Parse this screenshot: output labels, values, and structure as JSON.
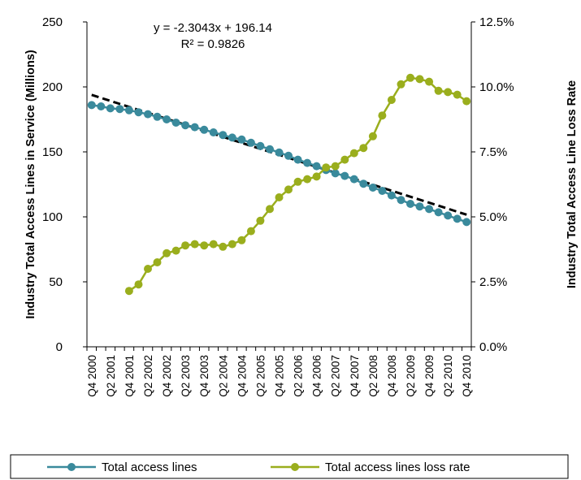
{
  "chart_data": {
    "type": "line",
    "ylabel_left": "Industry Total Access Lines in Service (Millions)",
    "ylabel_right": "Industry Total Access Line Loss Rate",
    "ylim_left": [
      0,
      250
    ],
    "ylim_right": [
      0,
      0.125
    ],
    "yticks_left": [
      "0",
      "50",
      "100",
      "150",
      "200",
      "250"
    ],
    "yticks_right": [
      "0.0%",
      "2.5%",
      "5.0%",
      "7.5%",
      "10.0%",
      "12.5%"
    ],
    "x_tick_labels": [
      "Q4 2000",
      "Q2 2001",
      "Q4 2001",
      "Q2 2002",
      "Q4 2002",
      "Q2 2003",
      "Q4 2003",
      "Q2 2004",
      "Q4 2004",
      "Q2 2005",
      "Q4 2005",
      "Q2 2006",
      "Q4 2006",
      "Q2 2007",
      "Q4 2007",
      "Q2 2008",
      "Q4 2008",
      "Q2 2009",
      "Q4 2009",
      "Q2 2010",
      "Q4 2010"
    ],
    "quarters": [
      "Q4 2000",
      "Q1 2001",
      "Q2 2001",
      "Q3 2001",
      "Q4 2001",
      "Q1 2002",
      "Q2 2002",
      "Q3 2002",
      "Q4 2002",
      "Q1 2003",
      "Q2 2003",
      "Q3 2003",
      "Q4 2003",
      "Q1 2004",
      "Q2 2004",
      "Q3 2004",
      "Q4 2004",
      "Q1 2005",
      "Q2 2005",
      "Q3 2005",
      "Q4 2005",
      "Q1 2006",
      "Q2 2006",
      "Q3 2006",
      "Q4 2006",
      "Q1 2007",
      "Q2 2007",
      "Q3 2007",
      "Q4 2007",
      "Q1 2008",
      "Q2 2008",
      "Q3 2008",
      "Q4 2008",
      "Q1 2009",
      "Q2 2009",
      "Q3 2009",
      "Q4 2009",
      "Q1 2010",
      "Q2 2010",
      "Q3 2010",
      "Q4 2010"
    ],
    "series": [
      {
        "name": "Total access lines",
        "axis": "left",
        "color": "#3a8a9c",
        "values": [
          186,
          185,
          183.5,
          183,
          182,
          180.5,
          179,
          177,
          175,
          172.5,
          170.5,
          169,
          167,
          165,
          163,
          161,
          159.5,
          157,
          154.5,
          152,
          149.5,
          147,
          144,
          141.5,
          139,
          136,
          133.5,
          131.5,
          129,
          125.5,
          122.5,
          120,
          116.5,
          113,
          110,
          108,
          106,
          103.5,
          101,
          98.5,
          96
        ]
      },
      {
        "name": "Total access lines loss rate",
        "axis": "right",
        "color": "#9aae1d",
        "values": [
          null,
          null,
          null,
          null,
          0.0215,
          0.024,
          0.03,
          0.0325,
          0.036,
          0.037,
          0.039,
          0.0395,
          0.039,
          0.0395,
          0.0385,
          0.0395,
          0.041,
          0.0445,
          0.0485,
          0.053,
          0.0575,
          0.0605,
          0.0635,
          0.0645,
          0.0655,
          0.069,
          0.0695,
          0.072,
          0.0745,
          0.0765,
          0.081,
          0.089,
          0.095,
          0.101,
          0.1035,
          0.103,
          0.102,
          0.0985,
          0.098,
          0.097,
          0.0945
        ]
      }
    ],
    "trendline": {
      "equation": "y = -2.3043x + 196.14",
      "r_squared": "R² = 0.9826",
      "slope": -2.3043,
      "intercept": 196.14,
      "style": "dashed",
      "color": "#000000"
    },
    "legend_position": "bottom",
    "grid": false
  }
}
